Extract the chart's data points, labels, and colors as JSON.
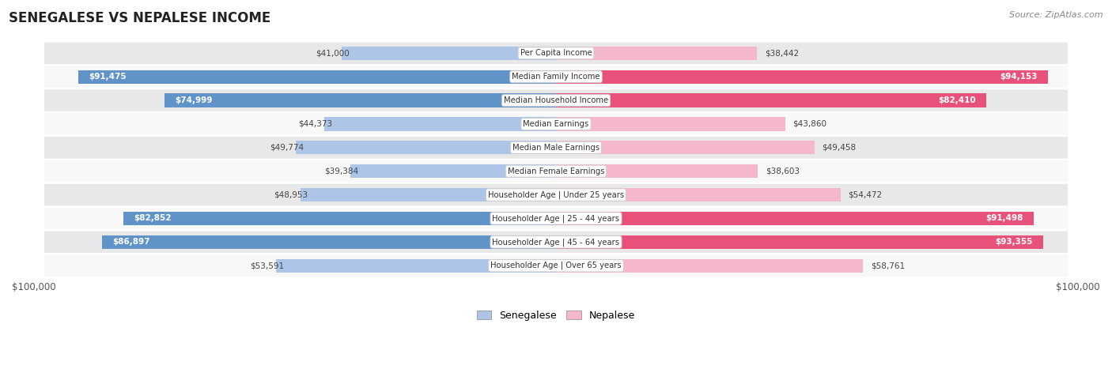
{
  "title": "SENEGALESE VS NEPALESE INCOME",
  "source": "Source: ZipAtlas.com",
  "categories": [
    "Per Capita Income",
    "Median Family Income",
    "Median Household Income",
    "Median Earnings",
    "Median Male Earnings",
    "Median Female Earnings",
    "Householder Age | Under 25 years",
    "Householder Age | 25 - 44 years",
    "Householder Age | 45 - 64 years",
    "Householder Age | Over 65 years"
  ],
  "senegalese": [
    41000,
    91475,
    74999,
    44373,
    49774,
    39384,
    48953,
    82852,
    86897,
    53591
  ],
  "nepalese": [
    38442,
    94153,
    82410,
    43860,
    49458,
    38603,
    54472,
    91498,
    93355,
    58761
  ],
  "senegalese_labels": [
    "$41,000",
    "$91,475",
    "$74,999",
    "$44,373",
    "$49,774",
    "$39,384",
    "$48,953",
    "$82,852",
    "$86,897",
    "$53,591"
  ],
  "nepalese_labels": [
    "$38,442",
    "$94,153",
    "$82,410",
    "$43,860",
    "$49,458",
    "$38,603",
    "$54,472",
    "$91,498",
    "$93,355",
    "$58,761"
  ],
  "max_val": 100000,
  "color_sen_light": "#adc6e8",
  "color_sen_dark": "#6094c8",
  "color_nep_light": "#f5b8cb",
  "color_nep_dark": "#e8527a",
  "color_bg_row_even": "#e8e8e8",
  "color_bg_row_odd": "#f8f8f8",
  "bar_height": 0.58,
  "threshold": 60000,
  "legend_label_senegalese": "Senegalese",
  "legend_label_nepalese": "Nepalese"
}
